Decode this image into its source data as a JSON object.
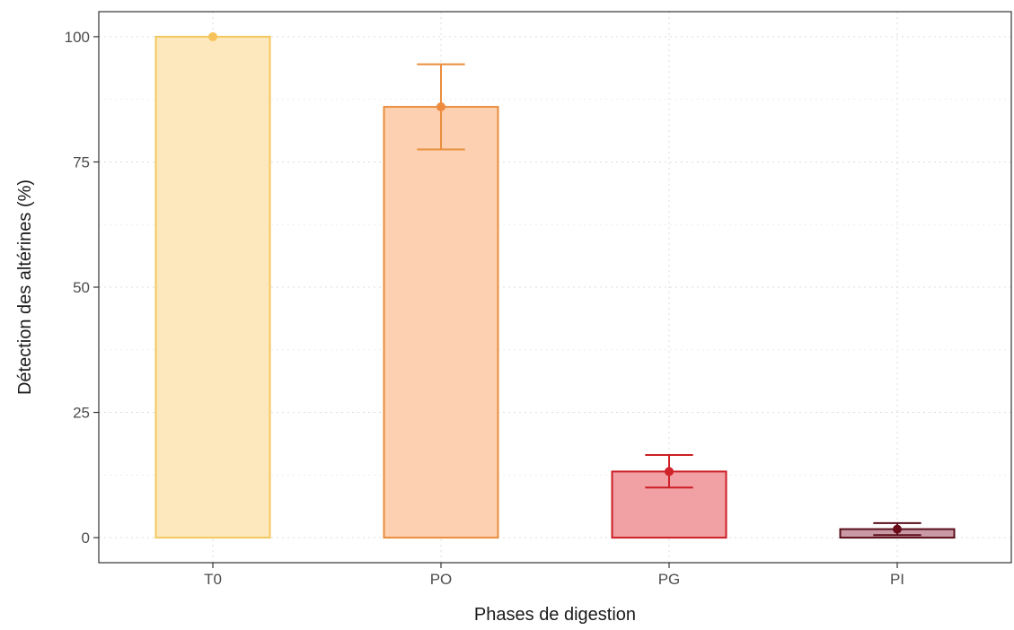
{
  "chart_data": {
    "type": "bar",
    "xlabel": "Phases de digestion",
    "ylabel": "Détection des altérines (%)",
    "categories": [
      "T0",
      "PO",
      "PG",
      "PI"
    ],
    "values": [
      100,
      86,
      13.2,
      1.7
    ],
    "error_low": [
      100,
      77.5,
      10,
      0.5
    ],
    "error_high": [
      100,
      94.5,
      16.5,
      2.9
    ],
    "ylim": [
      -5,
      105
    ],
    "yticks": [
      0,
      25,
      50,
      75,
      100
    ],
    "ytick_labels": [
      "0",
      "25",
      "50",
      "75",
      "100"
    ],
    "grid": true,
    "legend": "none",
    "colors": {
      "fill": [
        "#fde8bd",
        "#fcd0b0",
        "#f1a0a3",
        "#c99aa5"
      ],
      "stroke": [
        "#f4c75f",
        "#e98e3e",
        "#cc1f26",
        "#5a0f1c"
      ],
      "point": [
        "#f6c35a",
        "#ee8b3f",
        "#d2222a",
        "#6b0b1a"
      ]
    }
  }
}
